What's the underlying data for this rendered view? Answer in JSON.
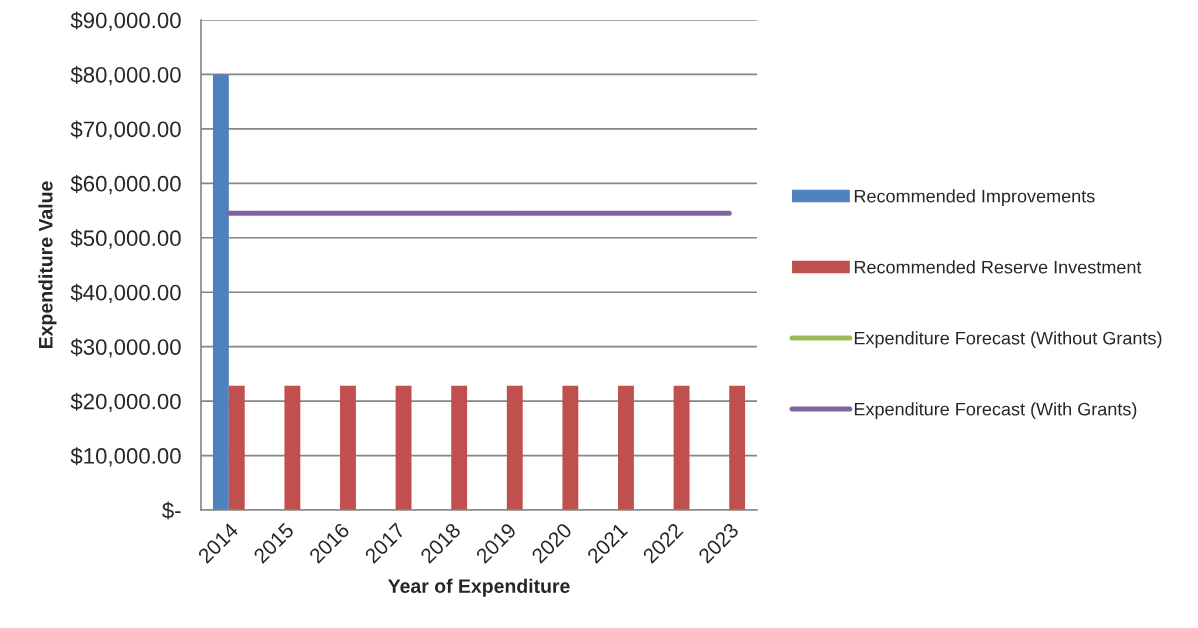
{
  "chart_data": {
    "type": "bar",
    "xlabel": "Year of Expenditure",
    "ylabel": "Expenditure Value",
    "categories": [
      "2014",
      "2015",
      "2016",
      "2017",
      "2018",
      "2019",
      "2020",
      "2021",
      "2022",
      "2023"
    ],
    "series": [
      {
        "name": "Recommended Improvements",
        "color": "#4f81bd",
        "values": [
          80000,
          null,
          null,
          null,
          null,
          null,
          null,
          null,
          null,
          null
        ]
      },
      {
        "name": "Recommended Reserve Investment",
        "color": "#c0504d",
        "values": [
          22800,
          22800,
          22800,
          22800,
          22800,
          22800,
          22800,
          22800,
          22800,
          22800
        ]
      },
      {
        "name": "Expenditure Forecast (Without Grants)",
        "type": "line",
        "color": "#9bbb59",
        "values": [
          null,
          null,
          null,
          null,
          null,
          null,
          null,
          null,
          null,
          null
        ]
      },
      {
        "name": "Expenditure Forecast (With Grants)",
        "type": "line",
        "color": "#8064a2",
        "values": [
          54500,
          54500,
          54500,
          54500,
          54500,
          54500,
          54500,
          54500,
          54500,
          54500
        ]
      }
    ],
    "ylim": [
      0,
      90000
    ],
    "yticks": [
      {
        "value": 0,
        "label": "$-"
      },
      {
        "value": 10000,
        "label": "$10,000.00"
      },
      {
        "value": 20000,
        "label": "$20,000.00"
      },
      {
        "value": 30000,
        "label": "$30,000.00"
      },
      {
        "value": 40000,
        "label": "$40,000.00"
      },
      {
        "value": 50000,
        "label": "$50,000.00"
      },
      {
        "value": 60000,
        "label": "$60,000.00"
      },
      {
        "value": 70000,
        "label": "$70,000.00"
      },
      {
        "value": 80000,
        "label": "$80,000.00"
      },
      {
        "value": 90000,
        "label": "$90,000.00"
      }
    ],
    "grid": "y",
    "legend": "right"
  }
}
